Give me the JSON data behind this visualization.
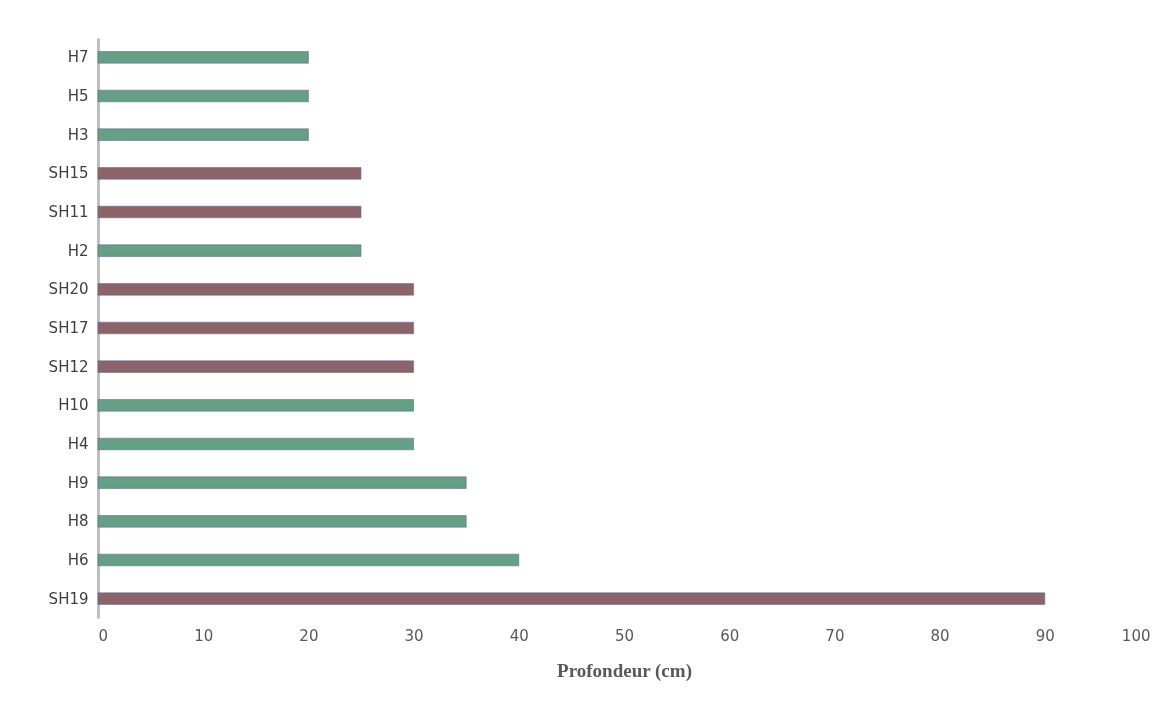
{
  "chart_data": {
    "type": "bar",
    "orientation": "horizontal",
    "xlabel": "Profondeur (cm)",
    "categories": [
      "H7",
      "H5",
      "H3",
      "SH15",
      "SH11",
      "H2",
      "SH20",
      "SH17",
      "SH12",
      "H10",
      "H4",
      "H9",
      "H8",
      "H6",
      "SH19"
    ],
    "values": [
      20,
      20,
      20,
      25,
      25,
      25,
      30,
      30,
      30,
      30,
      30,
      35,
      35,
      40,
      90
    ],
    "colors": [
      "#64a084",
      "#64a084",
      "#64a084",
      "#8c6468",
      "#8c6468",
      "#64a084",
      "#8c6468",
      "#8c6468",
      "#8c6468",
      "#64a084",
      "#64a084",
      "#64a084",
      "#64a084",
      "#64a084",
      "#8c6468"
    ],
    "xlim": [
      0,
      100
    ],
    "xticks": [
      0,
      10,
      20,
      30,
      40,
      50,
      60,
      70,
      80,
      90,
      100
    ],
    "grid": false
  }
}
